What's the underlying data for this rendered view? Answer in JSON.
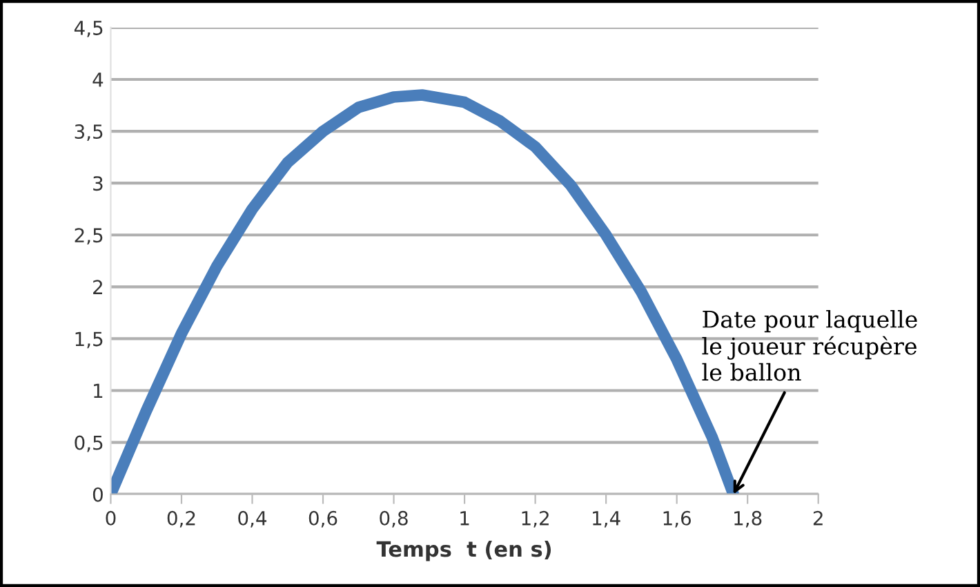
{
  "chart_data": {
    "type": "line",
    "xlabel": "Temps  t (en s)",
    "x": [
      0,
      0.1,
      0.2,
      0.3,
      0.4,
      0.5,
      0.6,
      0.7,
      0.8,
      0.88,
      1.0,
      1.1,
      1.2,
      1.3,
      1.4,
      1.5,
      1.6,
      1.7,
      1.76
    ],
    "series": [
      {
        "color": "#4a7ebb",
        "values": [
          0,
          0.8,
          1.55,
          2.2,
          2.75,
          3.2,
          3.5,
          3.73,
          3.83,
          3.85,
          3.78,
          3.6,
          3.35,
          2.98,
          2.5,
          1.95,
          1.3,
          0.55,
          0
        ]
      }
    ],
    "xlim": [
      0,
      2
    ],
    "ylim": [
      0,
      4.5
    ],
    "xticks": [
      0,
      {
        "value": 0.2,
        "label": "0,2"
      },
      {
        "value": 0.4,
        "label": "0,4"
      },
      {
        "value": 0.6,
        "label": "0,6"
      },
      {
        "value": 0.8,
        "label": "0,8"
      },
      1,
      {
        "value": 1.2,
        "label": "1,2"
      },
      {
        "value": 1.4,
        "label": "1,4"
      },
      {
        "value": 1.6,
        "label": "1,6"
      },
      {
        "value": 1.8,
        "label": "1,8"
      },
      2
    ],
    "yticks": [
      0,
      {
        "value": 0.5,
        "label": "0,5"
      },
      1,
      {
        "value": 1.5,
        "label": "1,5"
      },
      2,
      {
        "value": 2.5,
        "label": "2,5"
      },
      3,
      {
        "value": 3.5,
        "label": "3,5"
      },
      4,
      {
        "value": 4.5,
        "label": "4,5"
      }
    ],
    "grid": "y",
    "marker": "none",
    "line_style": "solid",
    "annotations": [
      {
        "text": "Date pour laquelle\nle joueur récupère\nle ballon",
        "x": 1.76,
        "y": 0
      }
    ]
  }
}
